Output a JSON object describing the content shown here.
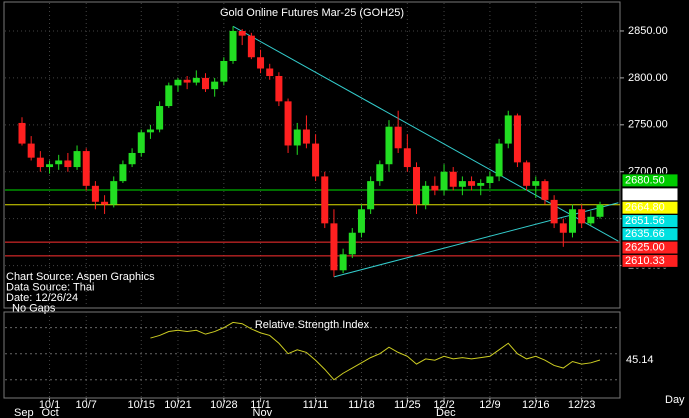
{
  "chart_data": [
    {
      "type": "candlestick",
      "title": "Gold Online Futures Mar-25 (GOH25)",
      "x_label": "Day",
      "categories": [
        null,
        null,
        null,
        "10/1",
        null,
        null,
        null,
        "10/7",
        null,
        null,
        null,
        null,
        null,
        "10/15",
        null,
        null,
        null,
        "10/21",
        null,
        null,
        null,
        null,
        "10/28",
        null,
        null,
        null,
        "11/1",
        null,
        null,
        null,
        null,
        null,
        "11/11",
        null,
        null,
        null,
        null,
        "11/18",
        null,
        null,
        null,
        null,
        "11/25",
        null,
        null,
        null,
        "12/2",
        null,
        null,
        null,
        null,
        "12/9",
        null,
        null,
        null,
        null,
        "12/16",
        null,
        null,
        null,
        null,
        "12/23",
        null,
        null
      ],
      "months": [
        {
          "label": "Sep",
          "at": 0
        },
        {
          "label": "Oct",
          "at": 3
        },
        {
          "label": "Nov",
          "at": 26
        },
        {
          "label": "Dec",
          "at": 46
        }
      ],
      "open": [
        2752,
        2730,
        2715,
        2705,
        2708,
        2712,
        2705,
        2722,
        2685,
        2668,
        2665,
        2690,
        2708,
        2720,
        2742,
        2745,
        2770,
        2792,
        2798,
        2795,
        2800,
        2788,
        2796,
        2818,
        2850,
        2845,
        2822,
        2810,
        2802,
        2775,
        2728,
        2745,
        2730,
        2695,
        2645,
        2595,
        2612,
        2635,
        2660,
        2690,
        2708,
        2748,
        2725,
        2705,
        2665,
        2685,
        2680,
        2700,
        2684,
        2690,
        2685,
        2688,
        2695,
        2730,
        2760,
        2710,
        2685,
        2690,
        2670,
        2645,
        2635,
        2660,
        2645,
        2652
      ],
      "high": [
        2758,
        2738,
        2722,
        2712,
        2718,
        2720,
        2728,
        2725,
        2690,
        2675,
        2695,
        2712,
        2725,
        2745,
        2750,
        2775,
        2795,
        2800,
        2802,
        2808,
        2805,
        2800,
        2822,
        2855,
        2852,
        2848,
        2830,
        2815,
        2806,
        2778,
        2752,
        2760,
        2740,
        2700,
        2660,
        2618,
        2640,
        2665,
        2695,
        2712,
        2755,
        2765,
        2740,
        2710,
        2690,
        2695,
        2708,
        2705,
        2695,
        2695,
        2692,
        2700,
        2735,
        2765,
        2762,
        2712,
        2695,
        2692,
        2675,
        2650,
        2665,
        2665,
        2658,
        2668
      ],
      "low": [
        2728,
        2712,
        2700,
        2698,
        2702,
        2700,
        2702,
        2680,
        2660,
        2655,
        2662,
        2688,
        2705,
        2716,
        2735,
        2742,
        2768,
        2785,
        2788,
        2792,
        2785,
        2780,
        2792,
        2815,
        2835,
        2820,
        2805,
        2798,
        2770,
        2720,
        2718,
        2725,
        2690,
        2640,
        2588,
        2592,
        2608,
        2630,
        2655,
        2685,
        2700,
        2720,
        2700,
        2655,
        2660,
        2675,
        2675,
        2680,
        2675,
        2680,
        2675,
        2682,
        2690,
        2725,
        2705,
        2680,
        2672,
        2665,
        2640,
        2620,
        2630,
        2640,
        2642,
        2650
      ],
      "close": [
        2730,
        2715,
        2705,
        2708,
        2712,
        2705,
        2722,
        2685,
        2668,
        2665,
        2690,
        2708,
        2720,
        2742,
        2745,
        2770,
        2792,
        2798,
        2795,
        2800,
        2788,
        2796,
        2818,
        2850,
        2845,
        2822,
        2810,
        2802,
        2775,
        2728,
        2745,
        2730,
        2695,
        2645,
        2595,
        2612,
        2635,
        2660,
        2690,
        2708,
        2748,
        2725,
        2705,
        2665,
        2685,
        2680,
        2700,
        2684,
        2690,
        2685,
        2688,
        2695,
        2730,
        2760,
        2710,
        2685,
        2690,
        2670,
        2645,
        2635,
        2660,
        2645,
        2652,
        2664.8
      ],
      "up_color": "#22dd22",
      "down_color": "#ff2020",
      "ylim": [
        2558,
        2883
      ],
      "yticks": [
        {
          "value": 2600,
          "label": "2600.00"
        },
        {
          "value": 2650,
          "label": "2650.00"
        },
        {
          "value": 2700,
          "label": "2700.00"
        },
        {
          "value": 2750,
          "label": "2750.00"
        },
        {
          "value": 2800,
          "label": "2800.00"
        },
        {
          "value": 2850,
          "label": "2850.00"
        }
      ],
      "grid": true,
      "levels": [
        {
          "value": 2680.5,
          "color": "#00dd00"
        },
        {
          "value": 2664.8,
          "color": "#dddd00"
        },
        {
          "value": 2625,
          "color": "#ff3030"
        },
        {
          "value": 2610.33,
          "color": "#ff3030"
        }
      ],
      "trendlines": [
        {
          "color": "#33cccc",
          "x": [
            23,
            65
          ],
          "y": [
            2855,
            2626
          ]
        },
        {
          "color": "#33cccc",
          "x": [
            34,
            65
          ],
          "y": [
            2588,
            2667
          ]
        }
      ],
      "price_labels": [
        {
          "value": 2680.5,
          "label": "2680.50",
          "color": "#00cc00"
        },
        {
          "value": 2665.6,
          "label": "2665.60",
          "color": "#ffffff"
        },
        {
          "value": 2664.8,
          "label": "2664.80",
          "color": "#ffff00"
        },
        {
          "value": 2651.56,
          "color": "#00e0e0"
        },
        {
          "value": 2635.66,
          "color": "#00e0e0"
        },
        {
          "value": 2625,
          "label": "2625.00",
          "color": "#ff2020"
        },
        {
          "value": 2610.33,
          "color": "#ff2020"
        }
      ],
      "annotations": [
        "Chart Source: Aspen Graphics",
        "Data Source: Thai",
        "Date: 12/26/24",
        "No Gaps"
      ]
    },
    {
      "type": "line",
      "title": "Relative Strength Index",
      "color": "#cccc22",
      "values": [
        null,
        null,
        null,
        null,
        null,
        null,
        null,
        null,
        null,
        null,
        null,
        null,
        null,
        null,
        62,
        64,
        67,
        68,
        67,
        68,
        65,
        67,
        70,
        74,
        73,
        69,
        66,
        64,
        58,
        50,
        53,
        51,
        45,
        38,
        30,
        35,
        39,
        43,
        47,
        50,
        55,
        51,
        48,
        42,
        46,
        45,
        48,
        46,
        47,
        46,
        47,
        48,
        53,
        58,
        50,
        46,
        48,
        45,
        41,
        39,
        44,
        42,
        43,
        45.14
      ],
      "ylim": [
        16,
        82
      ],
      "levels": [
        30,
        50,
        70
      ]
    }
  ]
}
